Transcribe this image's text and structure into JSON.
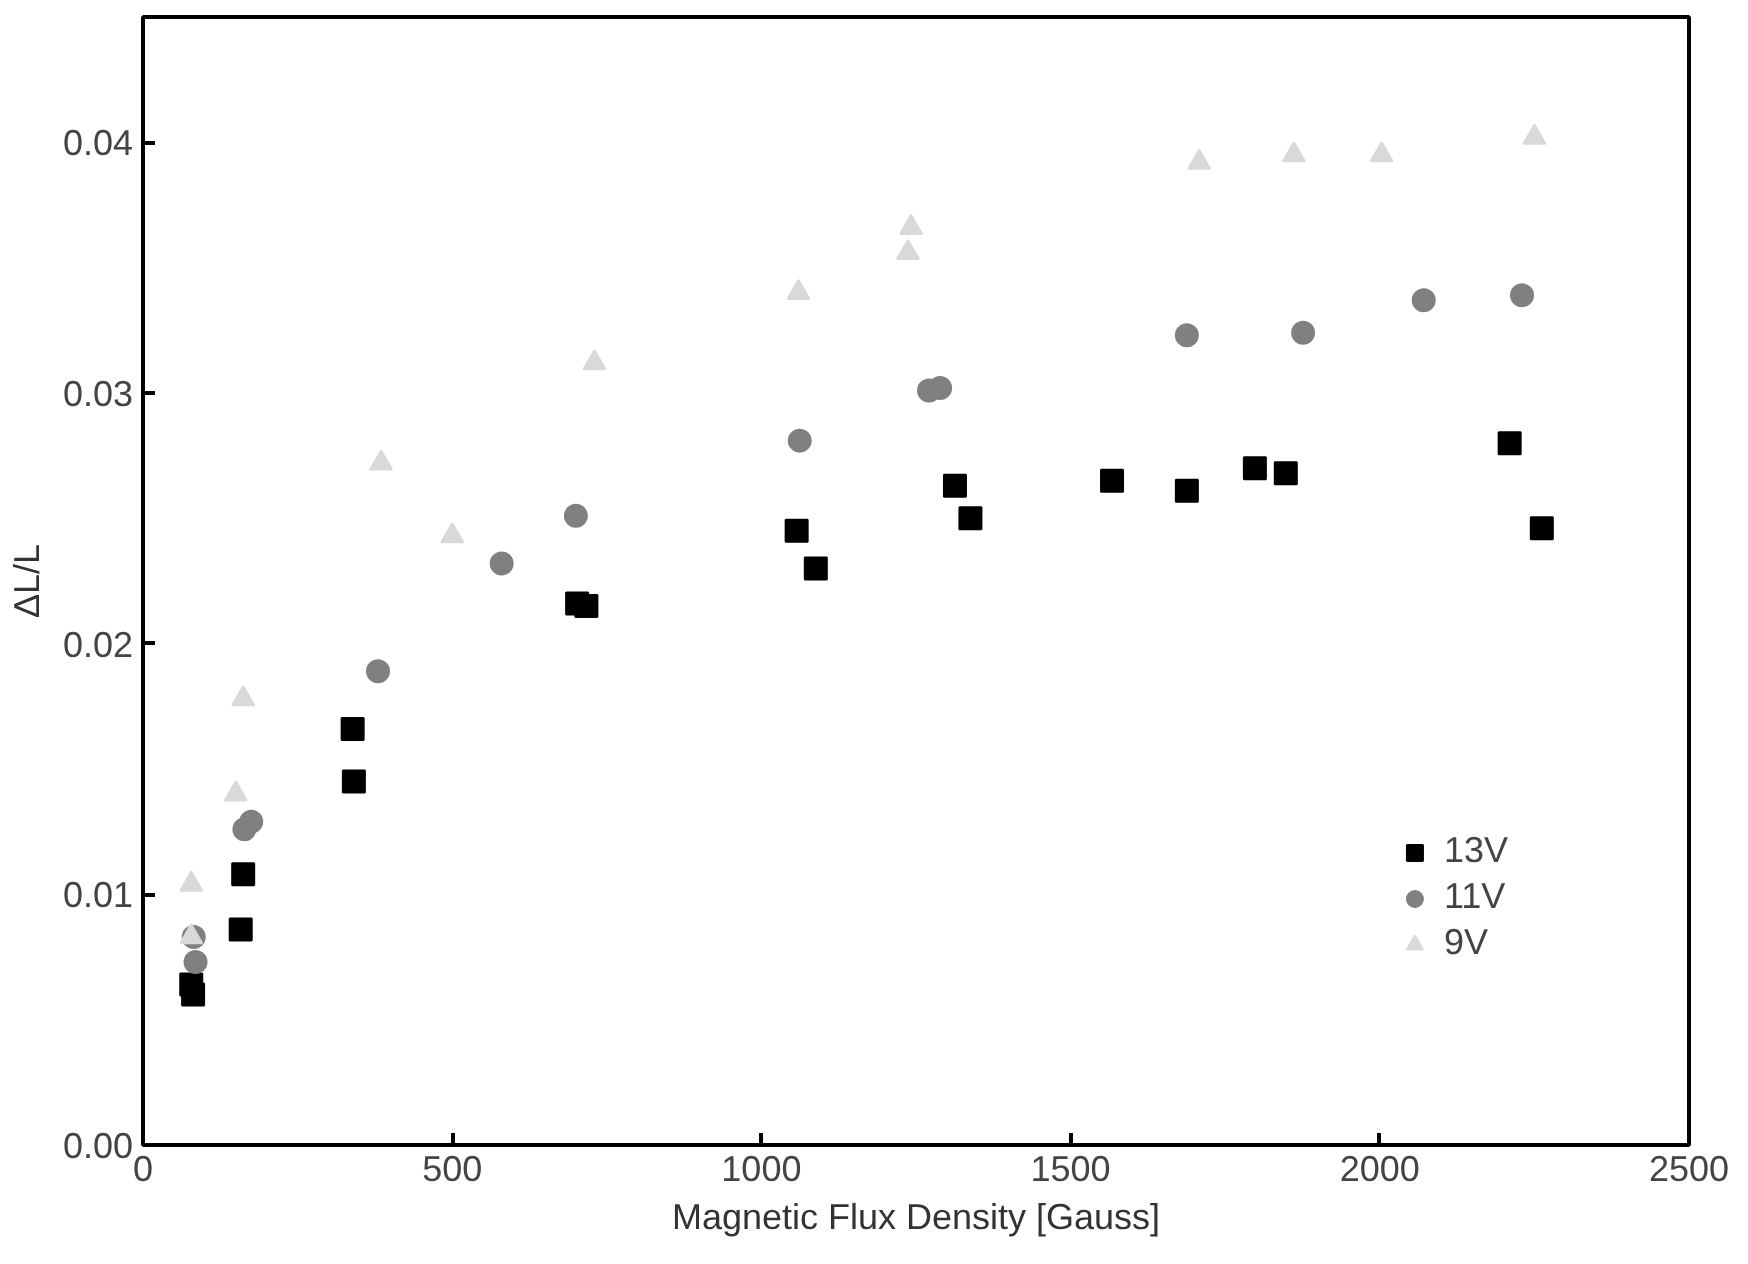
{
  "chart_data": {
    "type": "scatter",
    "xlabel": "Magnetic Flux Density [Gauss]",
    "ylabel": "ΔL/L",
    "xlim": [
      0,
      2500
    ],
    "ylim": [
      0,
      0.045
    ],
    "xticks": [
      0,
      500,
      1000,
      1500,
      2000,
      2500
    ],
    "yticks": [
      {
        "value": 0,
        "label": "0.00"
      },
      {
        "value": 0.01,
        "label": "0.01"
      },
      {
        "value": 0.02,
        "label": "0.02"
      },
      {
        "value": 0.03,
        "label": "0.03"
      },
      {
        "value": 0.04,
        "label": "0.04"
      }
    ],
    "grid": false,
    "legend": "bottom right",
    "series": [
      {
        "name": "13V",
        "color": "#000000",
        "marker": "square",
        "x": [
          78,
          81,
          158,
          162,
          339,
          341,
          702,
          717,
          1057,
          1088,
          1313,
          1338,
          1567,
          1688,
          1798,
          1848,
          2210,
          2262
        ],
        "values": [
          0.0064,
          0.006,
          0.0086,
          0.0108,
          0.0166,
          0.0145,
          0.0216,
          0.0215,
          0.0245,
          0.023,
          0.0263,
          0.025,
          0.0265,
          0.0261,
          0.027,
          0.0268,
          0.028,
          0.0246
        ]
      },
      {
        "name": "11V",
        "color": "#808080",
        "marker": "circle",
        "x": [
          82,
          85,
          164,
          175,
          380,
          580,
          700,
          1062,
          1271,
          1289,
          1688,
          1876,
          2071,
          2230
        ],
        "values": [
          0.0083,
          0.0073,
          0.0126,
          0.0129,
          0.0189,
          0.0232,
          0.0251,
          0.0281,
          0.0301,
          0.0302,
          0.0323,
          0.0324,
          0.0337,
          0.0339
        ]
      },
      {
        "name": "9V",
        "color": "#d9d9d9",
        "marker": "triangle",
        "x": [
          78,
          78,
          150,
          162,
          385,
          500,
          730,
          1060,
          1237,
          1242,
          1708,
          1861,
          2003,
          2250
        ],
        "values": [
          0.0083,
          0.0104,
          0.014,
          0.0178,
          0.0272,
          0.0243,
          0.0312,
          0.034,
          0.0356,
          0.0366,
          0.0392,
          0.0395,
          0.0395,
          0.0402
        ]
      }
    ]
  }
}
